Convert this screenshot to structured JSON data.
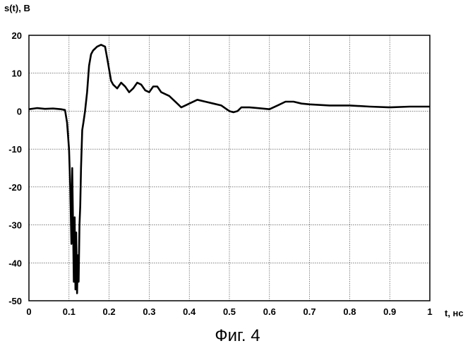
{
  "chart_data": {
    "type": "line",
    "ylabel": "s(t), В",
    "xlabel": "t, нс",
    "caption": "Фиг. 4",
    "xlim": [
      0,
      1
    ],
    "ylim": [
      -50,
      20
    ],
    "grid": true,
    "x_ticks": [
      "0",
      "0.1",
      "0.2",
      "0.3",
      "0.4",
      "0.5",
      "0.6",
      "0.7",
      "0.8",
      "0.9",
      "1"
    ],
    "y_ticks": [
      "20",
      "10",
      "0",
      "-10",
      "-20",
      "-30",
      "-40",
      "-50"
    ],
    "series": [
      {
        "x": [
          0,
          0.02,
          0.04,
          0.06,
          0.08,
          0.09,
          0.095,
          0.1,
          0.103,
          0.106,
          0.108,
          0.11,
          0.112,
          0.114,
          0.116,
          0.118,
          0.12,
          0.122,
          0.124,
          0.126,
          0.128,
          0.13,
          0.133,
          0.136,
          0.14,
          0.145,
          0.15,
          0.155,
          0.16,
          0.17,
          0.18,
          0.19,
          0.195,
          0.2,
          0.205,
          0.21,
          0.22,
          0.23,
          0.24,
          0.25,
          0.26,
          0.27,
          0.28,
          0.29,
          0.3,
          0.31,
          0.32,
          0.33,
          0.35,
          0.37,
          0.38,
          0.39,
          0.4,
          0.42,
          0.44,
          0.46,
          0.48,
          0.5,
          0.51,
          0.52,
          0.53,
          0.55,
          0.57,
          0.6,
          0.62,
          0.64,
          0.66,
          0.68,
          0.7,
          0.75,
          0.8,
          0.85,
          0.9,
          0.95,
          1.0
        ],
        "y": [
          0.5,
          0.8,
          0.6,
          0.7,
          0.5,
          0.3,
          -3,
          -10,
          -20,
          -35,
          -15,
          -30,
          -45,
          -28,
          -47,
          -32,
          -48,
          -38,
          -45,
          -30,
          -25,
          -15,
          -5,
          -3,
          0,
          5,
          12,
          15,
          16,
          17,
          17.5,
          17,
          14,
          11,
          8,
          7,
          6,
          7.5,
          6.5,
          5,
          6,
          7.5,
          7,
          5.5,
          5,
          6.5,
          6.5,
          5,
          4,
          2,
          1,
          1.5,
          2,
          3,
          2.5,
          2,
          1.5,
          0,
          -0.3,
          0,
          1,
          1,
          0.8,
          0.5,
          1.5,
          2.5,
          2.5,
          2,
          1.8,
          1.5,
          1.5,
          1.2,
          1,
          1.2,
          1.2
        ]
      }
    ]
  }
}
